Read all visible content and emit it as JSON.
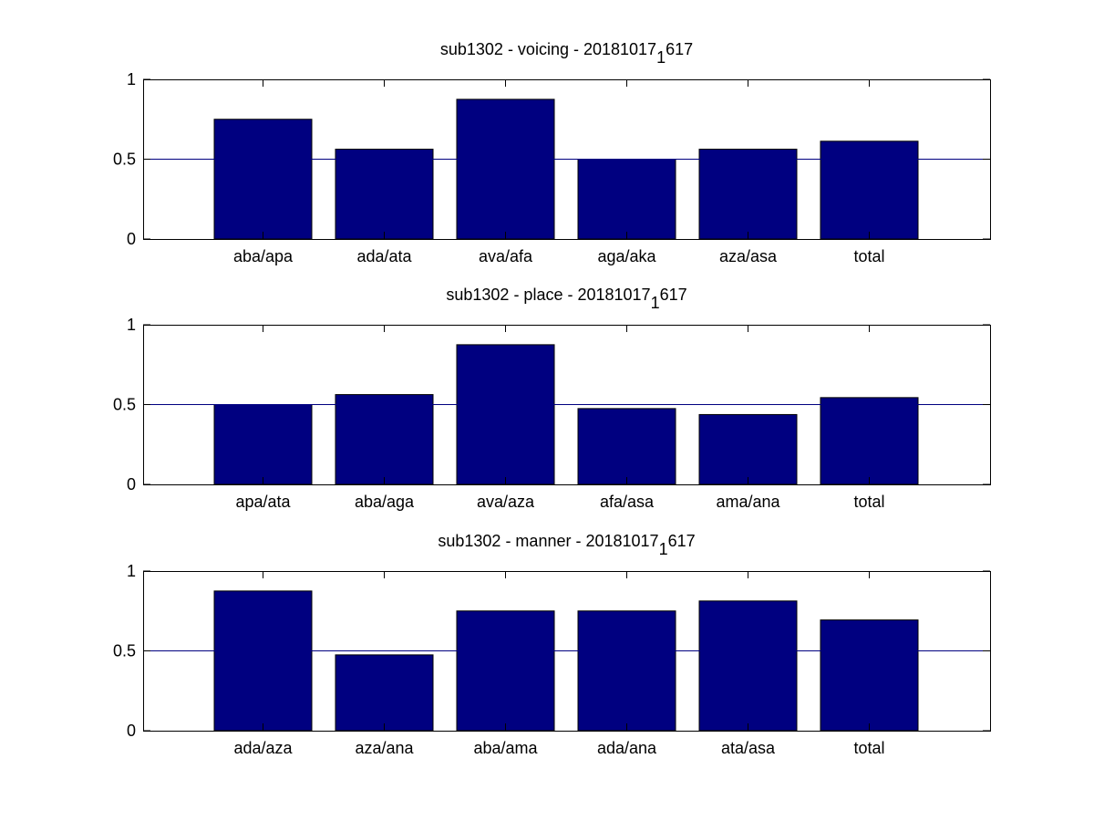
{
  "chart_data": [
    {
      "type": "bar",
      "title": {
        "main": "sub1302 - voicing - 20181017",
        "subscript": "1",
        "tail": "617"
      },
      "categories": [
        "aba/apa",
        "ada/ata",
        "ava/afa",
        "aga/aka",
        "aza/asa",
        "total"
      ],
      "values": [
        0.75,
        0.5625,
        0.875,
        0.5,
        0.5625,
        0.6125
      ],
      "ylim": [
        0,
        1
      ],
      "yticks": [
        "0",
        "0.5",
        "1"
      ],
      "reference_line": 0.5,
      "bar_color": "#000080",
      "line_color": "#000080"
    },
    {
      "type": "bar",
      "title": {
        "main": "sub1302 - place - 20181017",
        "subscript": "1",
        "tail": "617"
      },
      "categories": [
        "apa/ata",
        "aba/aga",
        "ava/aza",
        "afa/asa",
        "ama/ana",
        "total"
      ],
      "values": [
        0.5,
        0.5625,
        0.875,
        0.475,
        0.4375,
        0.5437
      ],
      "ylim": [
        0,
        1
      ],
      "yticks": [
        "0",
        "0.5",
        "1"
      ],
      "reference_line": 0.5,
      "bar_color": "#000080",
      "line_color": "#000080"
    },
    {
      "type": "bar",
      "title": {
        "main": "sub1302 - manner - 20181017",
        "subscript": "1",
        "tail": "617"
      },
      "categories": [
        "ada/aza",
        "aza/ana",
        "aba/ama",
        "ada/ana",
        "ata/asa",
        "total"
      ],
      "values": [
        0.875,
        0.475,
        0.75,
        0.75,
        0.8125,
        0.6937
      ],
      "ylim": [
        0,
        1
      ],
      "yticks": [
        "0",
        "0.5",
        "1"
      ],
      "reference_line": 0.5,
      "bar_color": "#000080",
      "line_color": "#000080"
    }
  ]
}
